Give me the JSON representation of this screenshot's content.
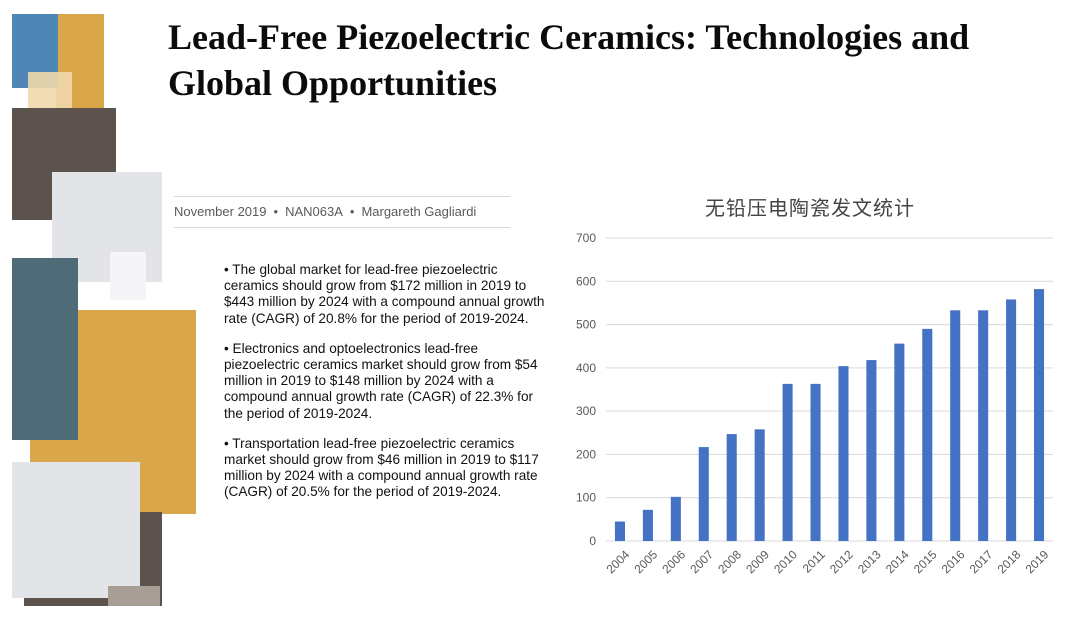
{
  "header": {
    "title": "Lead-Free Piezoelectric Ceramics: Technologies and Global Opportunities"
  },
  "report_meta": {
    "date": "November 2019",
    "code": "NAN063A",
    "author": "Margareth Gagliardi",
    "separator": "•"
  },
  "bullets": [
    "• The global market for lead-free piezoelectric ceramics should grow from $172 million in 2019 to $443 million by 2024 with a compound annual growth rate (CAGR) of 20.8% for the period of 2019-2024.",
    "• Electronics and optoelectronics lead-free piezoelectric ceramics market should grow from $54 million in 2019 to $148 million by 2024 with a compound annual growth rate (CAGR) of 22.3% for the period of 2019-2024.",
    "• Transportation lead-free piezoelectric ceramics market should grow from $46 million in 2019 to $117 million by 2024 with a compound annual growth rate (CAGR) of 20.5% for the period of 2019-2024."
  ],
  "colors": {
    "bar": "#4472c4",
    "grid": "#d9d9d9",
    "axis_text": "#595959"
  },
  "chart_data": {
    "type": "bar",
    "title": "无铅压电陶瓷发文统计",
    "xlabel": "",
    "ylabel": "",
    "categories": [
      "2004",
      "2005",
      "2006",
      "2007",
      "2008",
      "2009",
      "2010",
      "2011",
      "2012",
      "2013",
      "2014",
      "2015",
      "2016",
      "2017",
      "2018",
      "2019"
    ],
    "values": [
      45,
      72,
      102,
      217,
      247,
      258,
      363,
      363,
      404,
      418,
      456,
      490,
      533,
      533,
      558,
      582
    ],
    "ylim": [
      0,
      700
    ],
    "yticks": [
      0,
      100,
      200,
      300,
      400,
      500,
      600,
      700
    ],
    "grid": true,
    "legend": "none"
  }
}
